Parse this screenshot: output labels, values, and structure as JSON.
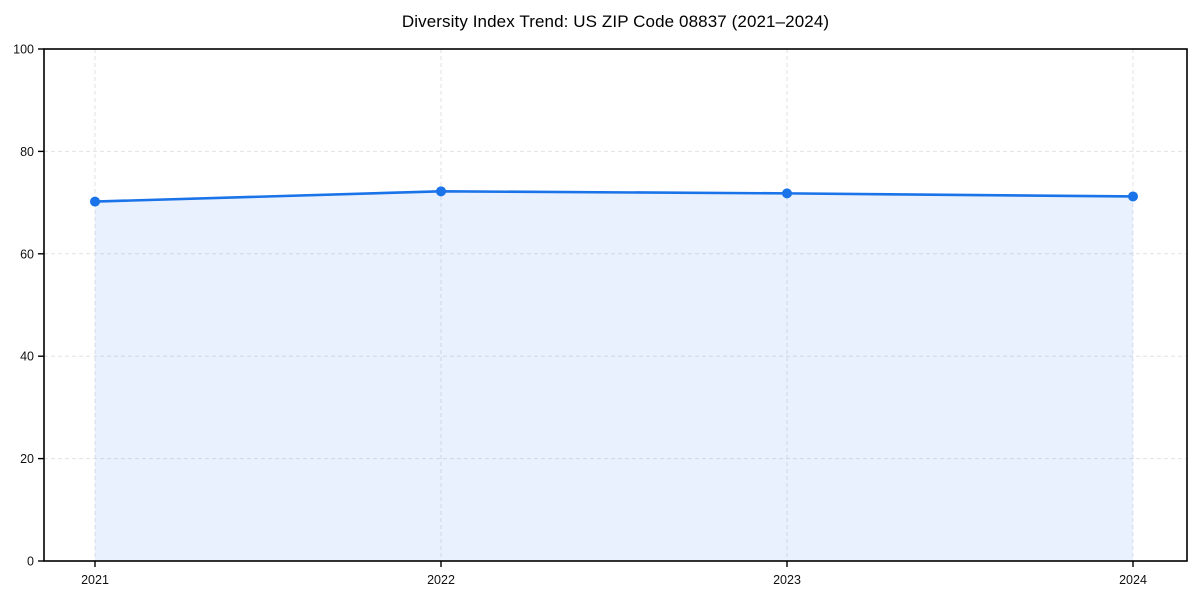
{
  "chart_data": {
    "type": "area",
    "title": "Diversity Index Trend: US ZIP Code 08837 (2021–2024)",
    "categories": [
      "2021",
      "2022",
      "2023",
      "2024"
    ],
    "series": [
      {
        "name": "Diversity Index",
        "values": [
          70.2,
          72.2,
          71.8,
          71.2
        ]
      }
    ],
    "xlabel": "",
    "ylabel": "",
    "ylim": [
      0,
      100
    ],
    "yticks": [
      0,
      20,
      40,
      60,
      80,
      100
    ],
    "grid": true,
    "grid_style": "dashed",
    "legend": false,
    "marker": "circle",
    "colors": {
      "line": "#1a73e8",
      "marker": "#1a73e8",
      "area_fill": "#1a73e8",
      "area_fill_opacity": 0.1,
      "grid": "#e2e2e2",
      "axis": "#000000",
      "text": "#111111",
      "background": "#ffffff"
    }
  }
}
